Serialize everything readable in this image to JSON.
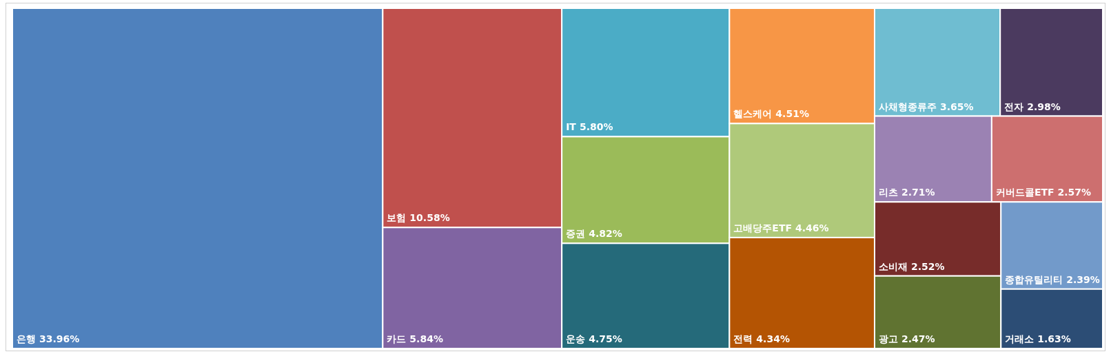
{
  "chart_data": {
    "type": "other",
    "categories": [
      "은행",
      "보험",
      "카드",
      "IT",
      "증권",
      "운송",
      "헬스케어",
      "고배당주ETF",
      "전력",
      "사채형종류주",
      "전자",
      "리츠",
      "커버드콜ETF",
      "소비재",
      "광고",
      "종합유틸리티",
      "거래소"
    ],
    "values": [
      33.96,
      10.58,
      5.84,
      5.8,
      4.82,
      4.75,
      4.51,
      4.46,
      4.34,
      3.65,
      2.98,
      2.71,
      2.57,
      2.52,
      2.47,
      2.39,
      1.63
    ],
    "value_labels": [
      "33.96%",
      "10.58%",
      "5.84%",
      "5.80%",
      "4.82%",
      "4.75%",
      "4.51%",
      "4.46%",
      "4.34%",
      "3.65%",
      "2.98%",
      "2.71%",
      "2.57%",
      "2.52%",
      "2.47%",
      "2.39%",
      "1.63%"
    ],
    "colors": [
      "#4f81bd",
      "#c0504d",
      "#8064a2",
      "#4bacc6",
      "#9bbb59",
      "#256a7a",
      "#f79646",
      "#afc97a",
      "#b45403",
      "#6fbdd1",
      "#4b3a5f",
      "#9b82b3",
      "#cd6f6f",
      "#772c2a",
      "#607331",
      "#729aca",
      "#2c4d75"
    ]
  }
}
